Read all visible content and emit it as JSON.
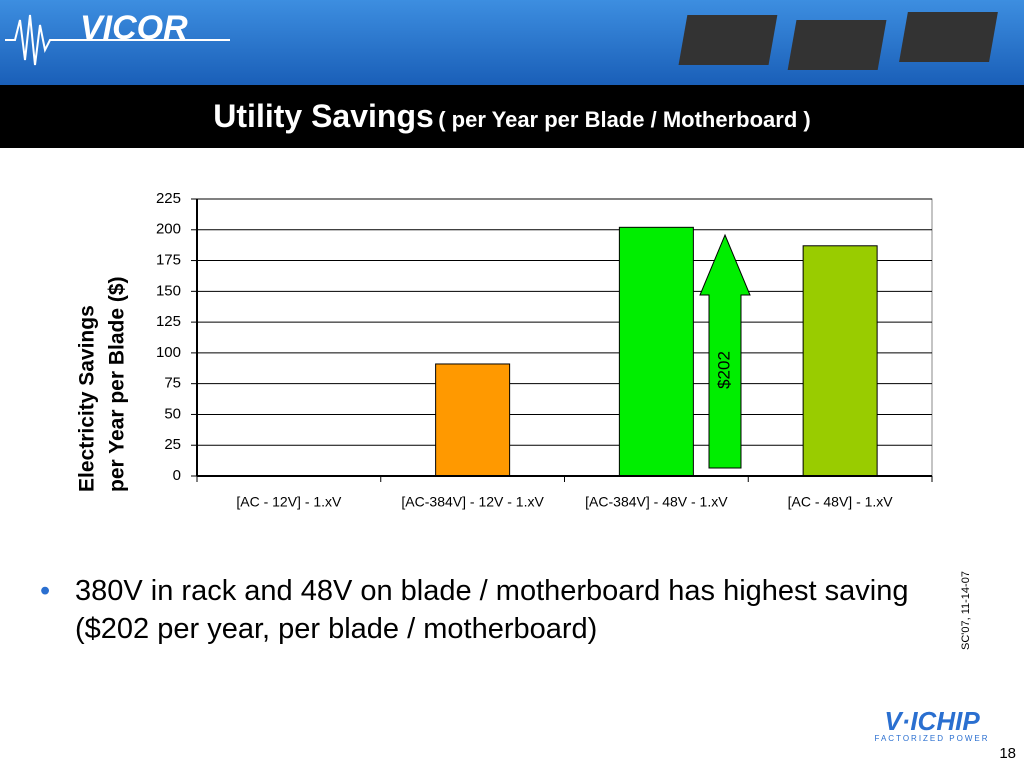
{
  "header": {
    "logo": "VICOR",
    "title": "Utility Savings",
    "subtitle": "( per Year per Blade / Motherboard )"
  },
  "chart_data": {
    "type": "bar",
    "y_label": [
      "Electricity Savings",
      "per Year per Blade ($)"
    ],
    "categories": [
      "[AC - 12V] - 1.xV",
      "[AC-384V] - 12V - 1.xV",
      "[AC-384V] - 48V - 1.xV",
      "[AC - 48V] - 1.xV"
    ],
    "values": [
      0,
      91,
      202,
      187
    ],
    "colors": [
      "#ff9900",
      "#ff9900",
      "#00ee00",
      "#99cc00"
    ],
    "ylim": [
      0,
      225
    ],
    "yticks": [
      0,
      25,
      50,
      75,
      100,
      125,
      150,
      175,
      200,
      225
    ],
    "grid": true,
    "annotation": "$202"
  },
  "bullet": "380V in rack and 48V on blade / motherboard has highest saving ($202 per year, per blade / motherboard)",
  "side_note": "SC'07, 11-14-07",
  "footer": {
    "logo": "V·ICHIP",
    "tagline": "FACTORIZED POWER",
    "page": "18"
  }
}
